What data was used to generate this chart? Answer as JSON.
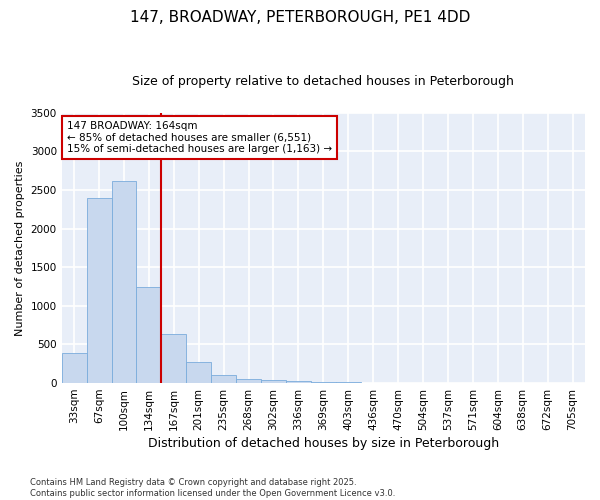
{
  "title1": "147, BROADWAY, PETERBOROUGH, PE1 4DD",
  "title2": "Size of property relative to detached houses in Peterborough",
  "xlabel": "Distribution of detached houses by size in Peterborough",
  "ylabel": "Number of detached properties",
  "categories": [
    "33sqm",
    "67sqm",
    "100sqm",
    "134sqm",
    "167sqm",
    "201sqm",
    "235sqm",
    "268sqm",
    "302sqm",
    "336sqm",
    "369sqm",
    "403sqm",
    "436sqm",
    "470sqm",
    "504sqm",
    "537sqm",
    "571sqm",
    "604sqm",
    "638sqm",
    "672sqm",
    "705sqm"
  ],
  "values": [
    390,
    2400,
    2620,
    1250,
    640,
    275,
    100,
    55,
    45,
    30,
    15,
    10,
    5,
    3,
    2,
    1,
    1,
    0,
    0,
    0,
    0
  ],
  "bar_color": "#c8d8ee",
  "bar_edge_color": "#7aacdc",
  "bar_linewidth": 0.6,
  "fig_bg_color": "#ffffff",
  "plot_bg_color": "#e8eef8",
  "grid_color": "#ffffff",
  "marker_color": "#cc0000",
  "annotation_text": "147 BROADWAY: 164sqm\n← 85% of detached houses are smaller (6,551)\n15% of semi-detached houses are larger (1,163) →",
  "annotation_box_facecolor": "#ffffff",
  "annotation_box_edgecolor": "#cc0000",
  "footer_text": "Contains HM Land Registry data © Crown copyright and database right 2025.\nContains public sector information licensed under the Open Government Licence v3.0.",
  "ylim": [
    0,
    3500
  ],
  "yticks": [
    0,
    500,
    1000,
    1500,
    2000,
    2500,
    3000,
    3500
  ],
  "title1_fontsize": 11,
  "title2_fontsize": 9,
  "xlabel_fontsize": 9,
  "ylabel_fontsize": 8,
  "tick_fontsize": 7.5,
  "annotation_fontsize": 7.5,
  "footer_fontsize": 6
}
